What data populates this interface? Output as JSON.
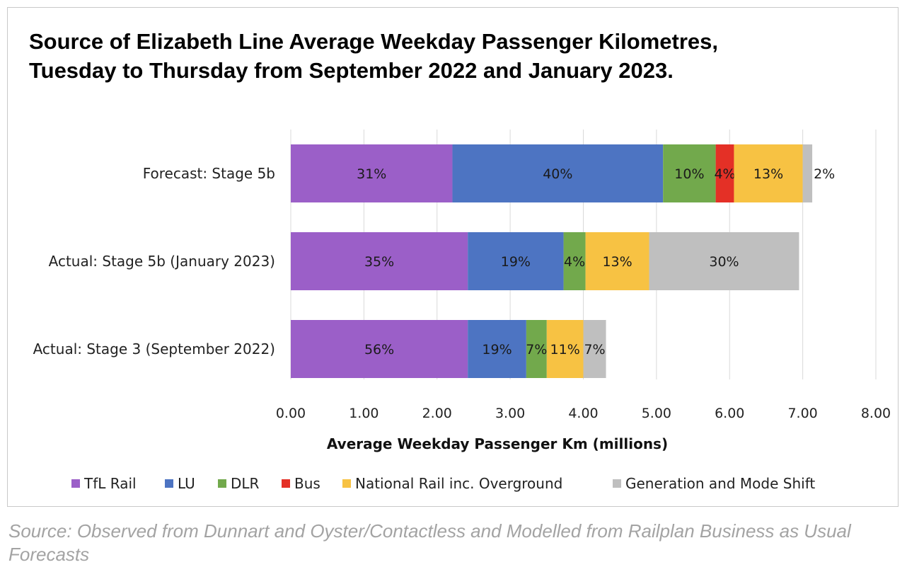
{
  "title_lines": [
    "Source of Elizabeth Line Average Weekday Passenger Kilometres,",
    "Tuesday to Thursday from September 2022 and January 2023."
  ],
  "source_note": "Source: Observed from Dunnart and Oyster/Contactless and Modelled from Railplan Business as Usual Forecasts",
  "chart_data": {
    "type": "bar",
    "orientation": "horizontal",
    "stacked": true,
    "title": "Source of Elizabeth Line Average Weekday Passenger Kilometres, Tuesday to Thursday from September 2022 and January 2023.",
    "xlabel": "Average Weekday Passenger Km (millions)",
    "ylabel": "",
    "xlim": [
      0,
      8
    ],
    "xticks": [
      "0.00",
      "1.00",
      "2.00",
      "3.00",
      "4.00",
      "5.00",
      "6.00",
      "7.00",
      "8.00"
    ],
    "grid": true,
    "legend_position": "bottom",
    "categories": [
      "Forecast: Stage 5b",
      "Actual: Stage 5b (January 2023)",
      "Actual: Stage 3 (September 2022)"
    ],
    "series": [
      {
        "name": "TfL Rail",
        "color": "#9b5fc8",
        "values": [
          2.21,
          2.42,
          2.42
        ],
        "labels": [
          "31%",
          "35%",
          "56%"
        ]
      },
      {
        "name": "LU",
        "color": "#4d74c2",
        "values": [
          2.88,
          1.31,
          0.8
        ],
        "labels": [
          "40%",
          "19%",
          "19%"
        ]
      },
      {
        "name": "DLR",
        "color": "#72a94c",
        "values": [
          0.72,
          0.3,
          0.28
        ],
        "labels": [
          "10%",
          "4%",
          "7%"
        ]
      },
      {
        "name": "Bus",
        "color": "#e43026",
        "values": [
          0.25,
          0,
          0
        ],
        "labels": [
          "4%",
          "",
          ""
        ]
      },
      {
        "name": "National Rail inc. Overground",
        "color": "#f7c243",
        "values": [
          0.94,
          0.87,
          0.5
        ],
        "labels": [
          "13%",
          "13%",
          "11%"
        ]
      },
      {
        "name": "Generation and Mode Shift",
        "color": "#bfbfbf",
        "values": [
          0.13,
          2.05,
          0.31
        ],
        "labels": [
          "2%",
          "30%",
          "7%"
        ]
      }
    ]
  }
}
